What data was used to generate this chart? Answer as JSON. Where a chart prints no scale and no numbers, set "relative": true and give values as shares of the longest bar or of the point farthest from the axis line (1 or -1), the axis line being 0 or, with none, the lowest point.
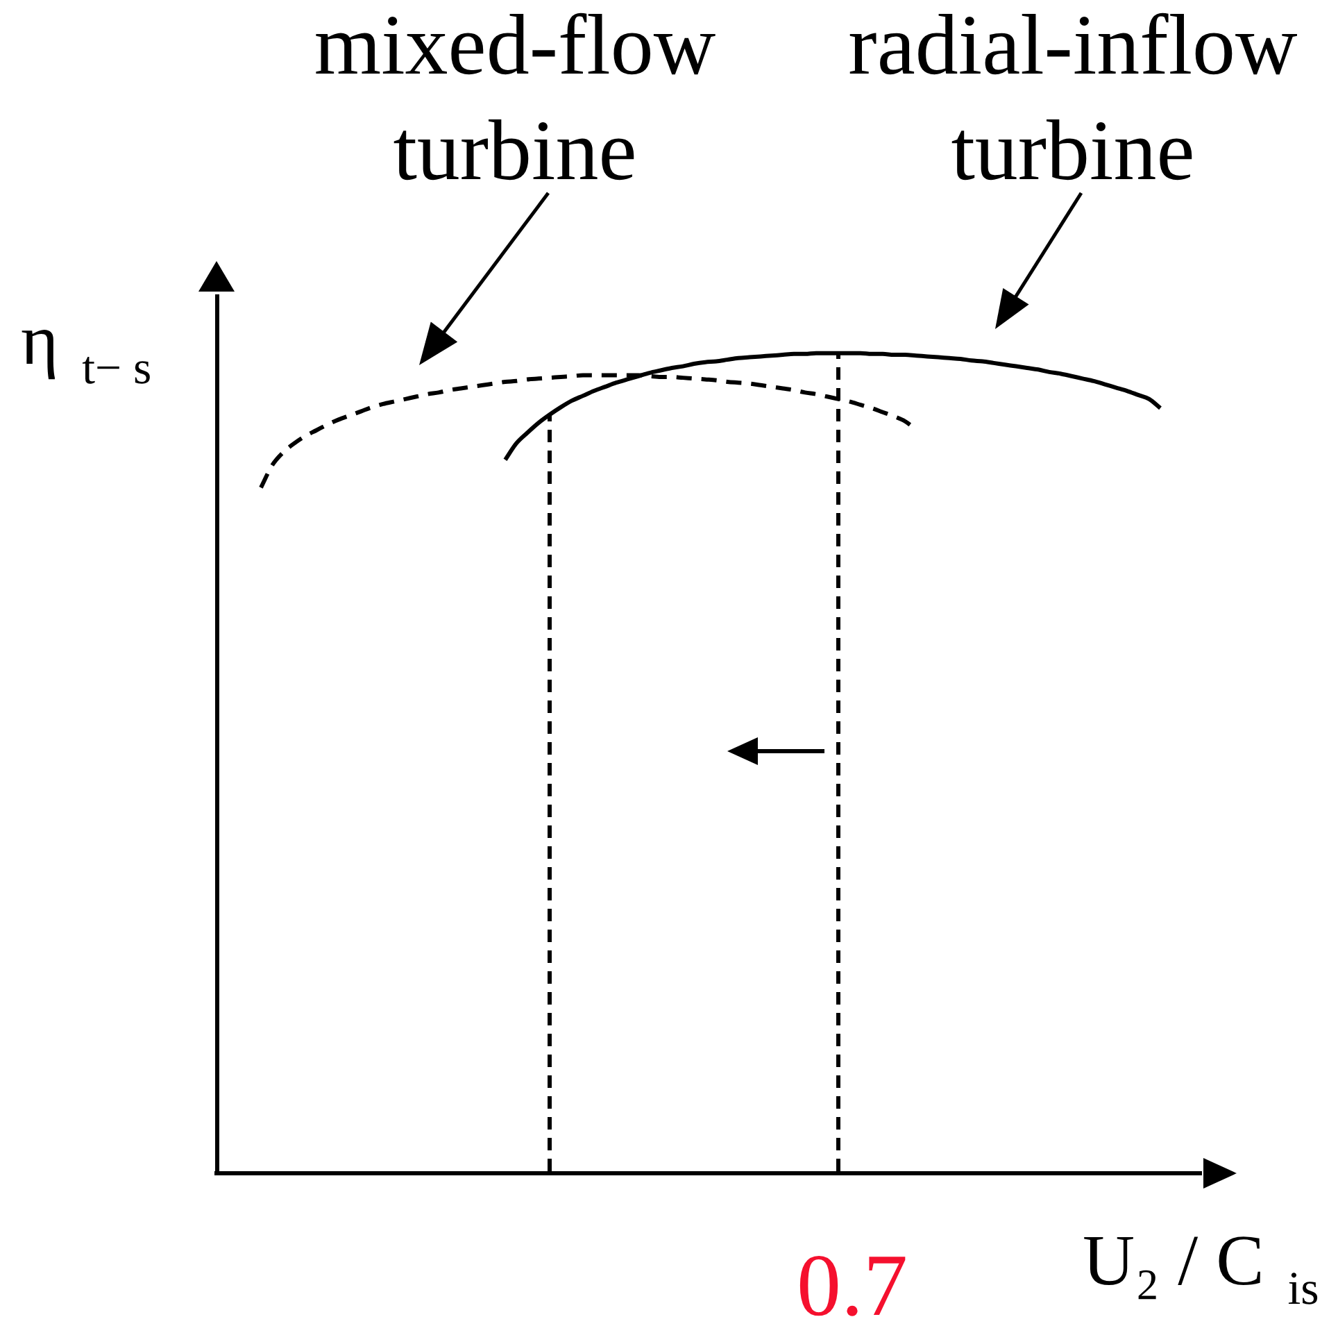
{
  "chart_data": {
    "type": "line",
    "relative": true,
    "xlabel": "U₂ / C$_{is}$",
    "ylabel": "η$_{t− s}$",
    "annotations": [
      "0.7"
    ],
    "categories": [
      null,
      null,
      null,
      null,
      null,
      null,
      null,
      null,
      null,
      null,
      null,
      null,
      null,
      null,
      null,
      null,
      null,
      null,
      null,
      null,
      null,
      null,
      null,
      null,
      null,
      null,
      null,
      null,
      null,
      null,
      null,
      null,
      null,
      null,
      null,
      null,
      null,
      null,
      null,
      null,
      null,
      null,
      null,
      null,
      null,
      null,
      null,
      null,
      null,
      null,
      null,
      null,
      null,
      null,
      null,
      null,
      null,
      null,
      null,
      null,
      null,
      null,
      null,
      null,
      null,
      null,
      null,
      null,
      null,
      null,
      null,
      null,
      null,
      null,
      null,
      null,
      null,
      null,
      null,
      null,
      null,
      null,
      null,
      null,
      null,
      null,
      null,
      null,
      null,
      null,
      null
    ],
    "series": [
      {
        "name": "mixed-flow turbine",
        "color": "#000000",
        "line_style": "dashed",
        "values": [
          null,
          null,
          null,
          null,
          0.836,
          0.863,
          0.879,
          0.89,
          0.899,
          0.906,
          0.913,
          0.919,
          0.924,
          0.929,
          0.934,
          0.938,
          0.941,
          0.944,
          0.947,
          0.95,
          0.952,
          0.955,
          0.957,
          0.959,
          0.961,
          0.963,
          0.965,
          0.966,
          0.968,
          0.969,
          0.97,
          0.971,
          0.972,
          0.973,
          0.973,
          0.973,
          0.973,
          0.973,
          0.973,
          0.972,
          0.971,
          0.971,
          0.97,
          0.969,
          0.968,
          0.967,
          0.965,
          0.964,
          0.963,
          0.961,
          0.959,
          0.957,
          0.955,
          0.952,
          0.95,
          0.947,
          0.944,
          0.941,
          0.937,
          0.933,
          0.928,
          0.923,
          0.917,
          0.907,
          null,
          null,
          null,
          null,
          null,
          null,
          null,
          null,
          null,
          null,
          null,
          null,
          null,
          null,
          null,
          null,
          null,
          null,
          null,
          null,
          null,
          null,
          null,
          null,
          null,
          null,
          null
        ]
      },
      {
        "name": "radial-inflow turbine",
        "color": "#000000",
        "line_style": "solid",
        "values": [
          null,
          null,
          null,
          null,
          null,
          null,
          null,
          null,
          null,
          null,
          null,
          null,
          null,
          null,
          null,
          null,
          null,
          null,
          null,
          null,
          null,
          null,
          null,
          null,
          null,
          null,
          0.87,
          0.89,
          0.903,
          0.915,
          0.925,
          0.934,
          0.942,
          0.948,
          0.954,
          0.959,
          0.964,
          0.968,
          0.972,
          0.976,
          0.979,
          0.982,
          0.984,
          0.987,
          0.989,
          0.99,
          0.992,
          0.994,
          0.995,
          0.996,
          0.997,
          0.998,
          0.999,
          0.999,
          1,
          1,
          1,
          1,
          1,
          0.999,
          0.999,
          0.998,
          0.998,
          0.997,
          0.996,
          0.995,
          0.994,
          0.993,
          0.991,
          0.99,
          0.988,
          0.986,
          0.984,
          0.982,
          0.98,
          0.977,
          0.975,
          0.972,
          0.969,
          0.966,
          0.962,
          0.958,
          0.954,
          0.949,
          0.944,
          0.933,
          null,
          null,
          null,
          null,
          null
        ]
      }
    ],
    "marker": "none",
    "legend": false
  }
}
